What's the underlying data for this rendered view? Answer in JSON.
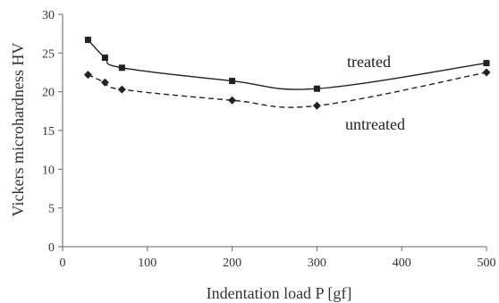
{
  "chart_data": {
    "type": "line",
    "title": "",
    "xlabel": "Indentation load P [gf]",
    "ylabel": "Vickers microhardness HV",
    "xlim": [
      0,
      500
    ],
    "ylim": [
      0,
      30
    ],
    "x_ticks": [
      "0",
      "100",
      "200",
      "300",
      "400",
      "500"
    ],
    "y_ticks": [
      "0",
      "5",
      "10",
      "15",
      "20",
      "25",
      "30"
    ],
    "grid": false,
    "legend": "inline-labels",
    "series": [
      {
        "name": "treated",
        "marker": "square",
        "line_style": "solid",
        "color": "#222222",
        "x": [
          30,
          50,
          70,
          200,
          300,
          500
        ],
        "y": [
          26.7,
          24.4,
          23.1,
          21.4,
          20.4,
          23.7
        ]
      },
      {
        "name": "untreated",
        "marker": "diamond",
        "line_style": "dashed",
        "color": "#222222",
        "x": [
          30,
          50,
          70,
          200,
          300,
          500
        ],
        "y": [
          22.2,
          21.2,
          20.3,
          18.9,
          18.2,
          22.5
        ]
      }
    ]
  }
}
